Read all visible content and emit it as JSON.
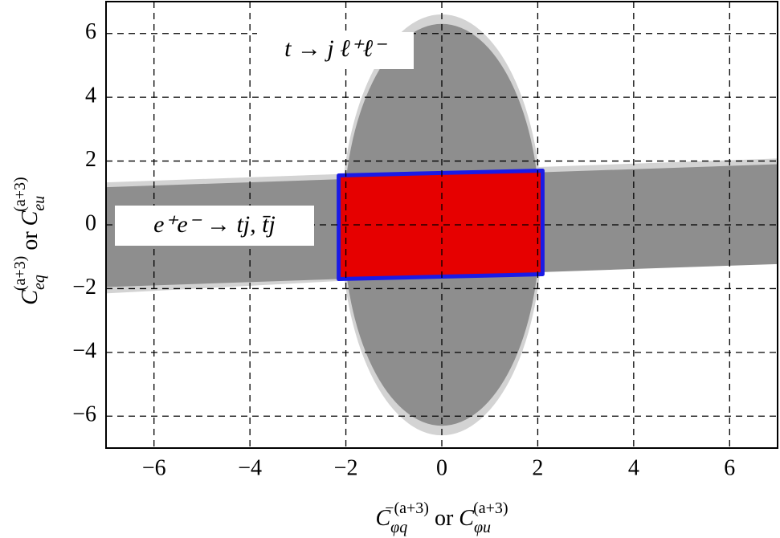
{
  "chart_data": {
    "type": "region",
    "xlabel": [
      "C",
      "φq",
      "−(a+3)",
      " or ",
      "C",
      "φu",
      "(a+3)"
    ],
    "ylabel": [
      "C",
      "eq",
      "(a+3)",
      " or ",
      "C",
      "eu",
      "(a+3)"
    ],
    "annotations": [
      "t → j ℓ⁺ℓ⁻",
      "e⁺e⁻ → tj, t̄j"
    ],
    "xlim": [
      -7,
      7
    ],
    "ylim": [
      -7,
      7
    ],
    "xticks": [
      {
        "value": -6,
        "label": "−6"
      },
      {
        "value": -4,
        "label": "−4"
      },
      {
        "value": -2,
        "label": "−2"
      },
      0,
      2,
      4,
      6
    ],
    "yticks": [
      {
        "value": -6,
        "label": "−6"
      },
      {
        "value": -4,
        "label": "−4"
      },
      {
        "value": -2,
        "label": "−2"
      },
      0,
      2,
      4,
      6
    ],
    "grid": true,
    "regions": [
      {
        "shape": "ellipse",
        "color": "#d3d3d3",
        "cx": 0,
        "cy": 0,
        "rx": 2.1,
        "ry": 6.6
      },
      {
        "shape": "polygon",
        "color": "#d3d3d3",
        "x": [
          -7,
          7,
          7,
          -7
        ],
        "y": [
          1.33,
          2.08,
          -1.03,
          -2.15
        ]
      },
      {
        "shape": "ellipse",
        "color": "#8e8e8e",
        "cx": 0,
        "cy": 0,
        "rx": 2.05,
        "ry": 6.3
      },
      {
        "shape": "polygon",
        "color": "#8e8e8e",
        "x": [
          -7,
          7,
          7,
          -7
        ],
        "y": [
          1.18,
          1.9,
          -1.23,
          -1.95
        ]
      },
      {
        "shape": "polygon",
        "color": "#e60000",
        "stroke": "#1a1ae6",
        "x": [
          -2.15,
          2.1,
          2.1,
          -2.15
        ],
        "y": [
          1.55,
          1.7,
          -1.55,
          -1.7
        ]
      }
    ]
  }
}
